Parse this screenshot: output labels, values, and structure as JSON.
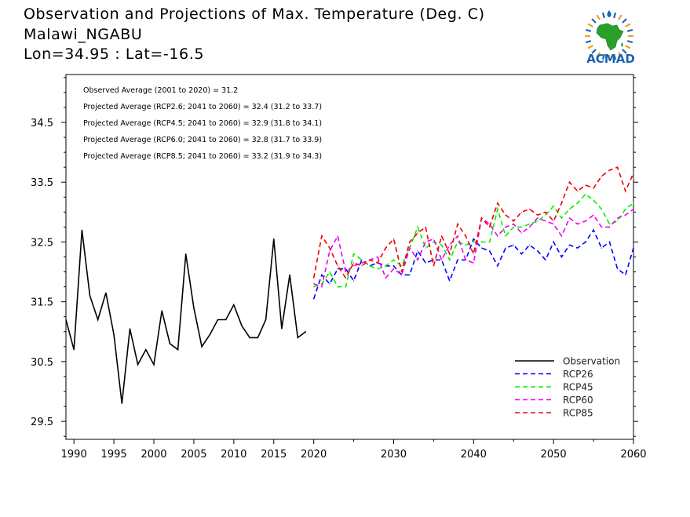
{
  "header": {
    "title": "Observation and Projections of Max. Temperature (Deg. C)",
    "location": "Malawi_NGABU",
    "coords": "Lon=34.95 : Lat=-16.5"
  },
  "logo": {
    "text": "ACMAD",
    "icon": "africa-logo-icon"
  },
  "colors": {
    "obs": "#000000",
    "rcp26": "#0000ff",
    "rcp45": "#00ee00",
    "rcp60": "#ee00ee",
    "rcp85": "#ee0000",
    "logo_blue": "#1a63b5",
    "logo_green": "#2aa02a",
    "logo_orange": "#f0a020"
  },
  "chart_data": {
    "type": "line",
    "xlim": [
      1989,
      2060
    ],
    "ylim": [
      29.2,
      35.3
    ],
    "x_tick_labels": [
      "1990",
      "1995",
      "2000",
      "2005",
      "2010",
      "2015",
      "2020",
      "2030",
      "2040",
      "2050",
      "2060"
    ],
    "y_tick_labels": [
      "29.5",
      "30.5",
      "31.5",
      "32.5",
      "33.5",
      "34.5"
    ],
    "annotations": [
      "Observed Average (2001 to 2020) = 31.2",
      "Projected Average (RCP2.6; 2041 to 2060) = 32.4 (31.2 to 33.7)",
      "Projected Average (RCP4.5; 2041 to 2060) = 32.9 (31.8 to 34.1)",
      "Projected Average (RCP6.0; 2041 to 2060) = 32.8 (31.7 to 33.9)",
      "Projected Average (RCP8.5; 2041 to 2060) = 33.2 (31.9 to 34.3)"
    ],
    "legend_position": "bottom-right",
    "series": [
      {
        "name": "Observation",
        "style": "solid",
        "color": "#000000",
        "x": [
          1989,
          1990,
          1991,
          1992,
          1993,
          1994,
          1995,
          1996,
          1997,
          1998,
          1999,
          2000,
          2001,
          2002,
          2003,
          2004,
          2005,
          2006,
          2007,
          2008,
          2009,
          2010,
          2011,
          2012,
          2013,
          2014,
          2015,
          2016,
          2017,
          2018,
          2019
        ],
        "values": [
          31.2,
          30.7,
          32.7,
          31.6,
          31.2,
          31.65,
          30.95,
          29.8,
          31.05,
          30.45,
          30.7,
          30.45,
          31.35,
          30.8,
          30.7,
          32.3,
          31.4,
          30.75,
          30.95,
          31.2,
          31.2,
          31.45,
          31.1,
          30.9,
          30.9,
          31.2,
          32.55,
          31.05,
          31.95,
          30.9,
          31.0
        ]
      },
      {
        "name": "RCP26",
        "style": "dashed",
        "color": "#0000ff",
        "x": [
          2020,
          2021,
          2022,
          2023,
          2024,
          2025,
          2026,
          2027,
          2028,
          2029,
          2030,
          2031,
          2032,
          2033,
          2034,
          2035,
          2036,
          2037,
          2038,
          2039,
          2040,
          2041,
          2042,
          2043,
          2044,
          2045,
          2046,
          2047,
          2048,
          2049,
          2050,
          2051,
          2052,
          2053,
          2054,
          2055,
          2056,
          2057,
          2058,
          2059,
          2060
        ],
        "values": [
          31.55,
          31.95,
          31.8,
          32.05,
          32.05,
          31.85,
          32.2,
          32.1,
          32.15,
          32.1,
          32.1,
          31.95,
          31.95,
          32.35,
          32.15,
          32.2,
          32.2,
          31.85,
          32.2,
          32.2,
          32.55,
          32.4,
          32.35,
          32.1,
          32.4,
          32.45,
          32.3,
          32.45,
          32.35,
          32.2,
          32.5,
          32.25,
          32.45,
          32.4,
          32.5,
          32.7,
          32.4,
          32.5,
          32.05,
          31.95,
          32.4
        ]
      },
      {
        "name": "RCP45",
        "style": "dashed",
        "color": "#00ee00",
        "x": [
          2020,
          2021,
          2022,
          2023,
          2024,
          2025,
          2026,
          2027,
          2028,
          2029,
          2030,
          2031,
          2032,
          2033,
          2034,
          2035,
          2036,
          2037,
          2038,
          2039,
          2040,
          2041,
          2042,
          2043,
          2044,
          2045,
          2046,
          2047,
          2048,
          2049,
          2050,
          2051,
          2052,
          2053,
          2054,
          2055,
          2056,
          2057,
          2058,
          2059,
          2060
        ],
        "values": [
          31.75,
          31.8,
          32.0,
          31.75,
          31.75,
          32.3,
          32.2,
          32.1,
          32.05,
          32.1,
          32.2,
          32.1,
          32.4,
          32.75,
          32.4,
          32.5,
          32.45,
          32.2,
          32.5,
          32.45,
          32.5,
          32.5,
          32.5,
          33.05,
          32.6,
          32.75,
          32.75,
          32.8,
          32.85,
          32.95,
          33.1,
          32.9,
          33.05,
          33.15,
          33.3,
          33.2,
          33.05,
          32.8,
          32.85,
          33.05,
          33.15
        ]
      },
      {
        "name": "RCP60",
        "style": "dashed",
        "color": "#ee00ee",
        "x": [
          2020,
          2021,
          2022,
          2023,
          2024,
          2025,
          2026,
          2027,
          2028,
          2029,
          2030,
          2031,
          2032,
          2033,
          2034,
          2035,
          2036,
          2037,
          2038,
          2039,
          2040,
          2041,
          2042,
          2043,
          2044,
          2045,
          2046,
          2047,
          2048,
          2049,
          2050,
          2051,
          2052,
          2053,
          2054,
          2055,
          2056,
          2057,
          2058,
          2059,
          2060
        ],
        "values": [
          31.8,
          31.75,
          32.35,
          32.6,
          32.0,
          32.1,
          32.15,
          32.2,
          32.25,
          31.9,
          32.05,
          31.95,
          32.4,
          32.2,
          32.5,
          32.55,
          32.2,
          32.45,
          32.6,
          32.2,
          32.15,
          32.9,
          32.8,
          32.6,
          32.75,
          32.8,
          32.65,
          32.75,
          32.9,
          32.85,
          32.8,
          32.6,
          32.9,
          32.8,
          32.85,
          32.95,
          32.75,
          32.75,
          32.9,
          32.95,
          33.05
        ]
      },
      {
        "name": "RCP85",
        "style": "dashed",
        "color": "#ee0000",
        "x": [
          2020,
          2021,
          2022,
          2023,
          2024,
          2025,
          2026,
          2027,
          2028,
          2029,
          2030,
          2031,
          2032,
          2033,
          2034,
          2035,
          2036,
          2037,
          2038,
          2039,
          2040,
          2041,
          2042,
          2043,
          2044,
          2045,
          2046,
          2047,
          2048,
          2049,
          2050,
          2051,
          2052,
          2053,
          2054,
          2055,
          2056,
          2057,
          2058,
          2059,
          2060
        ],
        "values": [
          31.9,
          32.6,
          32.4,
          32.1,
          31.9,
          32.15,
          32.1,
          32.2,
          32.15,
          32.4,
          32.55,
          32.0,
          32.5,
          32.65,
          32.75,
          32.1,
          32.6,
          32.3,
          32.8,
          32.6,
          32.3,
          32.9,
          32.75,
          33.15,
          32.95,
          32.85,
          33.0,
          33.05,
          32.95,
          33.0,
          32.85,
          33.15,
          33.5,
          33.35,
          33.45,
          33.4,
          33.6,
          33.7,
          33.75,
          33.35,
          33.65
        ]
      }
    ]
  }
}
